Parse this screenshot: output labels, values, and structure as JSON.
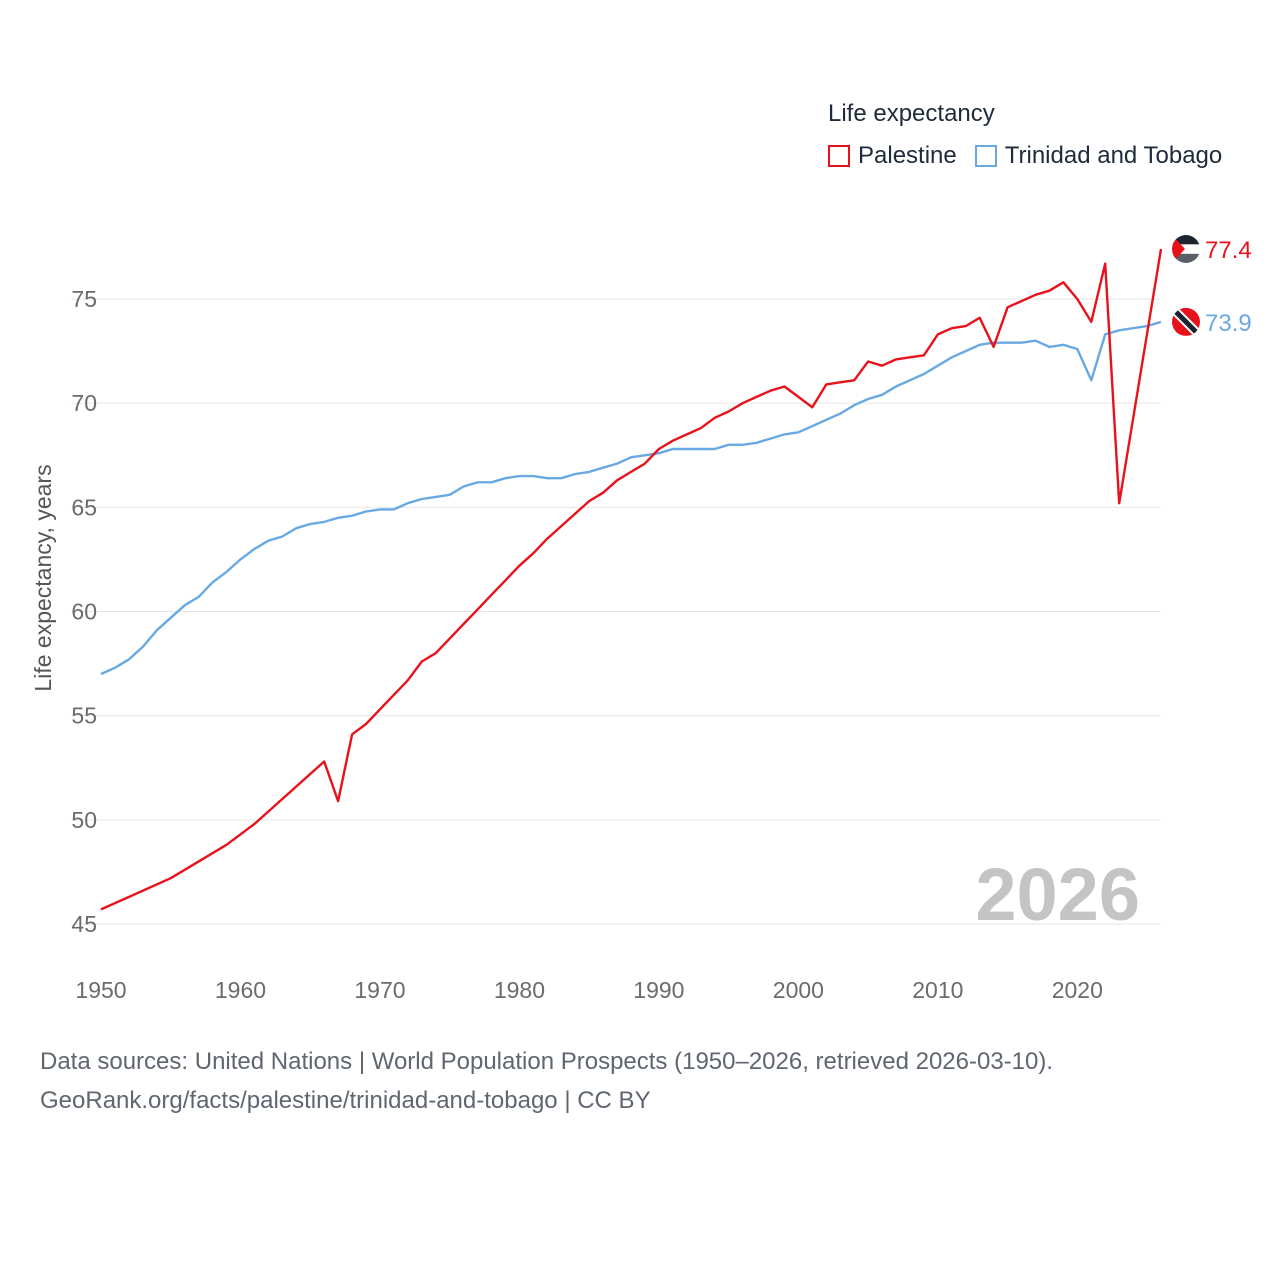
{
  "legend": {
    "title": "Life expectancy",
    "items": [
      {
        "label": "Palestine",
        "color": "#e8121c"
      },
      {
        "label": "Trinidad and Tobago",
        "color": "#69a9e3"
      }
    ]
  },
  "source": {
    "line1": "Data sources: United Nations | World Population Prospects (1950–2026, retrieved 2026-03-10).",
    "line2": "GeoRank.org/facts/palestine/trinidad-and-tobago | CC BY"
  },
  "chart_data": {
    "type": "line",
    "title": "Life expectancy",
    "xlabel": "",
    "ylabel": "Life expectancy, years",
    "xlim": [
      1950,
      2026
    ],
    "ylim": [
      43,
      78
    ],
    "x_ticks": [
      1950,
      1960,
      1970,
      1980,
      1990,
      2000,
      2010,
      2020
    ],
    "y_ticks": [
      45,
      50,
      55,
      60,
      65,
      70,
      75
    ],
    "year_label": "2026",
    "grid": true,
    "legend_position": "top-right",
    "series": [
      {
        "name": "Palestine",
        "color": "#e8121c",
        "end_label": "77.4",
        "points": [
          [
            1950,
            45.7
          ],
          [
            1955,
            47.2
          ],
          [
            1959,
            48.8
          ],
          [
            1961,
            49.8
          ],
          [
            1966,
            52.8
          ],
          [
            1967,
            50.9
          ],
          [
            1968,
            54.1
          ],
          [
            1969,
            54.6
          ],
          [
            1970,
            55.3
          ],
          [
            1971,
            56.0
          ],
          [
            1972,
            56.7
          ],
          [
            1973,
            57.6
          ],
          [
            1974,
            58.0
          ],
          [
            1975,
            58.7
          ],
          [
            1976,
            59.4
          ],
          [
            1977,
            60.1
          ],
          [
            1978,
            60.8
          ],
          [
            1979,
            61.5
          ],
          [
            1980,
            62.2
          ],
          [
            1981,
            62.8
          ],
          [
            1982,
            63.5
          ],
          [
            1983,
            64.1
          ],
          [
            1984,
            64.7
          ],
          [
            1985,
            65.3
          ],
          [
            1986,
            65.7
          ],
          [
            1987,
            66.3
          ],
          [
            1988,
            66.7
          ],
          [
            1989,
            67.1
          ],
          [
            1990,
            67.8
          ],
          [
            1991,
            68.2
          ],
          [
            1992,
            68.5
          ],
          [
            1993,
            68.8
          ],
          [
            1994,
            69.3
          ],
          [
            1995,
            69.6
          ],
          [
            1996,
            70.0
          ],
          [
            1997,
            70.3
          ],
          [
            1998,
            70.6
          ],
          [
            1999,
            70.8
          ],
          [
            2000,
            70.3
          ],
          [
            2001,
            69.8
          ],
          [
            2002,
            70.9
          ],
          [
            2003,
            71.0
          ],
          [
            2004,
            71.1
          ],
          [
            2005,
            72.0
          ],
          [
            2006,
            71.8
          ],
          [
            2007,
            72.1
          ],
          [
            2008,
            72.2
          ],
          [
            2009,
            72.3
          ],
          [
            2010,
            73.3
          ],
          [
            2011,
            73.6
          ],
          [
            2012,
            73.7
          ],
          [
            2013,
            74.1
          ],
          [
            2014,
            72.7
          ],
          [
            2015,
            74.6
          ],
          [
            2016,
            74.9
          ],
          [
            2017,
            75.2
          ],
          [
            2018,
            75.4
          ],
          [
            2019,
            75.8
          ],
          [
            2020,
            75.0
          ],
          [
            2021,
            73.9
          ],
          [
            2022,
            76.7
          ],
          [
            2023,
            65.2
          ],
          [
            2026,
            77.4
          ]
        ]
      },
      {
        "name": "Trinidad and Tobago",
        "color": "#69a9e3",
        "end_label": "73.9",
        "points": [
          [
            1950,
            57.0
          ],
          [
            1951,
            57.3
          ],
          [
            1952,
            57.7
          ],
          [
            1953,
            58.3
          ],
          [
            1954,
            59.1
          ],
          [
            1955,
            59.7
          ],
          [
            1956,
            60.3
          ],
          [
            1957,
            60.7
          ],
          [
            1958,
            61.4
          ],
          [
            1959,
            61.9
          ],
          [
            1960,
            62.5
          ],
          [
            1961,
            63.0
          ],
          [
            1962,
            63.4
          ],
          [
            1963,
            63.6
          ],
          [
            1964,
            64.0
          ],
          [
            1965,
            64.2
          ],
          [
            1966,
            64.3
          ],
          [
            1967,
            64.5
          ],
          [
            1968,
            64.6
          ],
          [
            1969,
            64.8
          ],
          [
            1970,
            64.9
          ],
          [
            1971,
            64.9
          ],
          [
            1972,
            65.2
          ],
          [
            1973,
            65.4
          ],
          [
            1974,
            65.5
          ],
          [
            1975,
            65.6
          ],
          [
            1976,
            66.0
          ],
          [
            1977,
            66.2
          ],
          [
            1978,
            66.2
          ],
          [
            1979,
            66.4
          ],
          [
            1980,
            66.5
          ],
          [
            1981,
            66.5
          ],
          [
            1982,
            66.4
          ],
          [
            1983,
            66.4
          ],
          [
            1984,
            66.6
          ],
          [
            1985,
            66.7
          ],
          [
            1986,
            66.9
          ],
          [
            1987,
            67.1
          ],
          [
            1988,
            67.4
          ],
          [
            1989,
            67.5
          ],
          [
            1990,
            67.6
          ],
          [
            1991,
            67.8
          ],
          [
            1992,
            67.8
          ],
          [
            1993,
            67.8
          ],
          [
            1994,
            67.8
          ],
          [
            1995,
            68.0
          ],
          [
            1996,
            68.0
          ],
          [
            1997,
            68.1
          ],
          [
            1998,
            68.3
          ],
          [
            1999,
            68.5
          ],
          [
            2000,
            68.6
          ],
          [
            2001,
            68.9
          ],
          [
            2002,
            69.2
          ],
          [
            2003,
            69.5
          ],
          [
            2004,
            69.9
          ],
          [
            2005,
            70.2
          ],
          [
            2006,
            70.4
          ],
          [
            2007,
            70.8
          ],
          [
            2008,
            71.1
          ],
          [
            2009,
            71.4
          ],
          [
            2010,
            71.8
          ],
          [
            2011,
            72.2
          ],
          [
            2012,
            72.5
          ],
          [
            2013,
            72.8
          ],
          [
            2014,
            72.9
          ],
          [
            2015,
            72.9
          ],
          [
            2016,
            72.9
          ],
          [
            2017,
            73.0
          ],
          [
            2018,
            72.7
          ],
          [
            2019,
            72.8
          ],
          [
            2020,
            72.6
          ],
          [
            2021,
            71.1
          ],
          [
            2022,
            73.3
          ],
          [
            2023,
            73.5
          ],
          [
            2024,
            73.6
          ],
          [
            2025,
            73.7
          ],
          [
            2026,
            73.9
          ]
        ]
      }
    ]
  }
}
